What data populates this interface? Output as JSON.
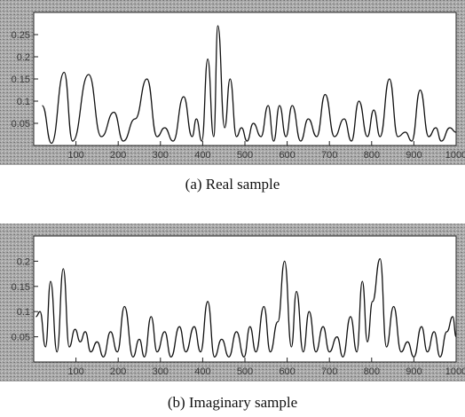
{
  "chart_data": [
    {
      "type": "line",
      "caption": "(a) Real sample",
      "xlim": [
        0,
        1000
      ],
      "ylim": [
        0,
        0.3
      ],
      "x_ticks": [
        100,
        200,
        300,
        400,
        500,
        600,
        700,
        800,
        900,
        1000
      ],
      "y_ticks": [
        0.05,
        0.1,
        0.15,
        0.2,
        0.25
      ],
      "peaks": [
        [
          20,
          0.09
        ],
        [
          42,
          0.005
        ],
        [
          72,
          0.165
        ],
        [
          92,
          0.01
        ],
        [
          130,
          0.16
        ],
        [
          160,
          0.02
        ],
        [
          190,
          0.075
        ],
        [
          212,
          0.01
        ],
        [
          240,
          0.06
        ],
        [
          268,
          0.15
        ],
        [
          292,
          0.02
        ],
        [
          310,
          0.04
        ],
        [
          330,
          0.01
        ],
        [
          355,
          0.11
        ],
        [
          375,
          0.02
        ],
        [
          385,
          0.06
        ],
        [
          398,
          0.01
        ],
        [
          412,
          0.195
        ],
        [
          426,
          0.02
        ],
        [
          436,
          0.27
        ],
        [
          452,
          0.04
        ],
        [
          465,
          0.15
        ],
        [
          480,
          0.02
        ],
        [
          492,
          0.04
        ],
        [
          505,
          0.01
        ],
        [
          520,
          0.05
        ],
        [
          538,
          0.02
        ],
        [
          555,
          0.09
        ],
        [
          568,
          0.01
        ],
        [
          582,
          0.09
        ],
        [
          597,
          0.02
        ],
        [
          612,
          0.09
        ],
        [
          632,
          0.01
        ],
        [
          650,
          0.06
        ],
        [
          670,
          0.02
        ],
        [
          690,
          0.115
        ],
        [
          712,
          0.02
        ],
        [
          735,
          0.06
        ],
        [
          752,
          0.01
        ],
        [
          770,
          0.1
        ],
        [
          790,
          0.02
        ],
        [
          805,
          0.08
        ],
        [
          820,
          0.02
        ],
        [
          842,
          0.15
        ],
        [
          862,
          0.02
        ],
        [
          880,
          0.03
        ],
        [
          895,
          0.01
        ],
        [
          915,
          0.125
        ],
        [
          935,
          0.02
        ],
        [
          952,
          0.04
        ],
        [
          965,
          0.01
        ],
        [
          985,
          0.04
        ],
        [
          1000,
          0.03
        ]
      ]
    },
    {
      "type": "line",
      "caption": "(b) Imaginary sample",
      "xlim": [
        0,
        1000
      ],
      "ylim": [
        0,
        0.25
      ],
      "x_ticks": [
        100,
        200,
        300,
        400,
        500,
        600,
        700,
        800,
        900,
        1000
      ],
      "y_ticks": [
        0.05,
        0.1,
        0.15,
        0.2
      ],
      "peaks": [
        [
          5,
          0.09
        ],
        [
          15,
          0.1
        ],
        [
          28,
          0.03
        ],
        [
          40,
          0.16
        ],
        [
          55,
          0.02
        ],
        [
          70,
          0.185
        ],
        [
          84,
          0.03
        ],
        [
          98,
          0.065
        ],
        [
          110,
          0.04
        ],
        [
          122,
          0.06
        ],
        [
          135,
          0.02
        ],
        [
          150,
          0.04
        ],
        [
          165,
          0.01
        ],
        [
          182,
          0.06
        ],
        [
          198,
          0.02
        ],
        [
          215,
          0.11
        ],
        [
          235,
          0.01
        ],
        [
          250,
          0.045
        ],
        [
          262,
          0.01
        ],
        [
          278,
          0.09
        ],
        [
          292,
          0.02
        ],
        [
          310,
          0.06
        ],
        [
          325,
          0.01
        ],
        [
          345,
          0.07
        ],
        [
          360,
          0.02
        ],
        [
          380,
          0.07
        ],
        [
          395,
          0.02
        ],
        [
          412,
          0.12
        ],
        [
          428,
          0.01
        ],
        [
          445,
          0.045
        ],
        [
          462,
          0.01
        ],
        [
          480,
          0.06
        ],
        [
          498,
          0.01
        ],
        [
          512,
          0.07
        ],
        [
          526,
          0.02
        ],
        [
          545,
          0.11
        ],
        [
          560,
          0.02
        ],
        [
          578,
          0.08
        ],
        [
          594,
          0.2
        ],
        [
          610,
          0.03
        ],
        [
          622,
          0.14
        ],
        [
          638,
          0.02
        ],
        [
          652,
          0.1
        ],
        [
          668,
          0.02
        ],
        [
          685,
          0.07
        ],
        [
          700,
          0.02
        ],
        [
          718,
          0.05
        ],
        [
          732,
          0.01
        ],
        [
          750,
          0.09
        ],
        [
          765,
          0.02
        ],
        [
          778,
          0.16
        ],
        [
          790,
          0.04
        ],
        [
          802,
          0.12
        ],
        [
          820,
          0.205
        ],
        [
          835,
          0.03
        ],
        [
          852,
          0.11
        ],
        [
          870,
          0.02
        ],
        [
          885,
          0.04
        ],
        [
          900,
          0.01
        ],
        [
          918,
          0.07
        ],
        [
          932,
          0.02
        ],
        [
          948,
          0.06
        ],
        [
          962,
          0.01
        ],
        [
          978,
          0.06
        ],
        [
          992,
          0.09
        ],
        [
          1000,
          0.05
        ]
      ]
    }
  ]
}
